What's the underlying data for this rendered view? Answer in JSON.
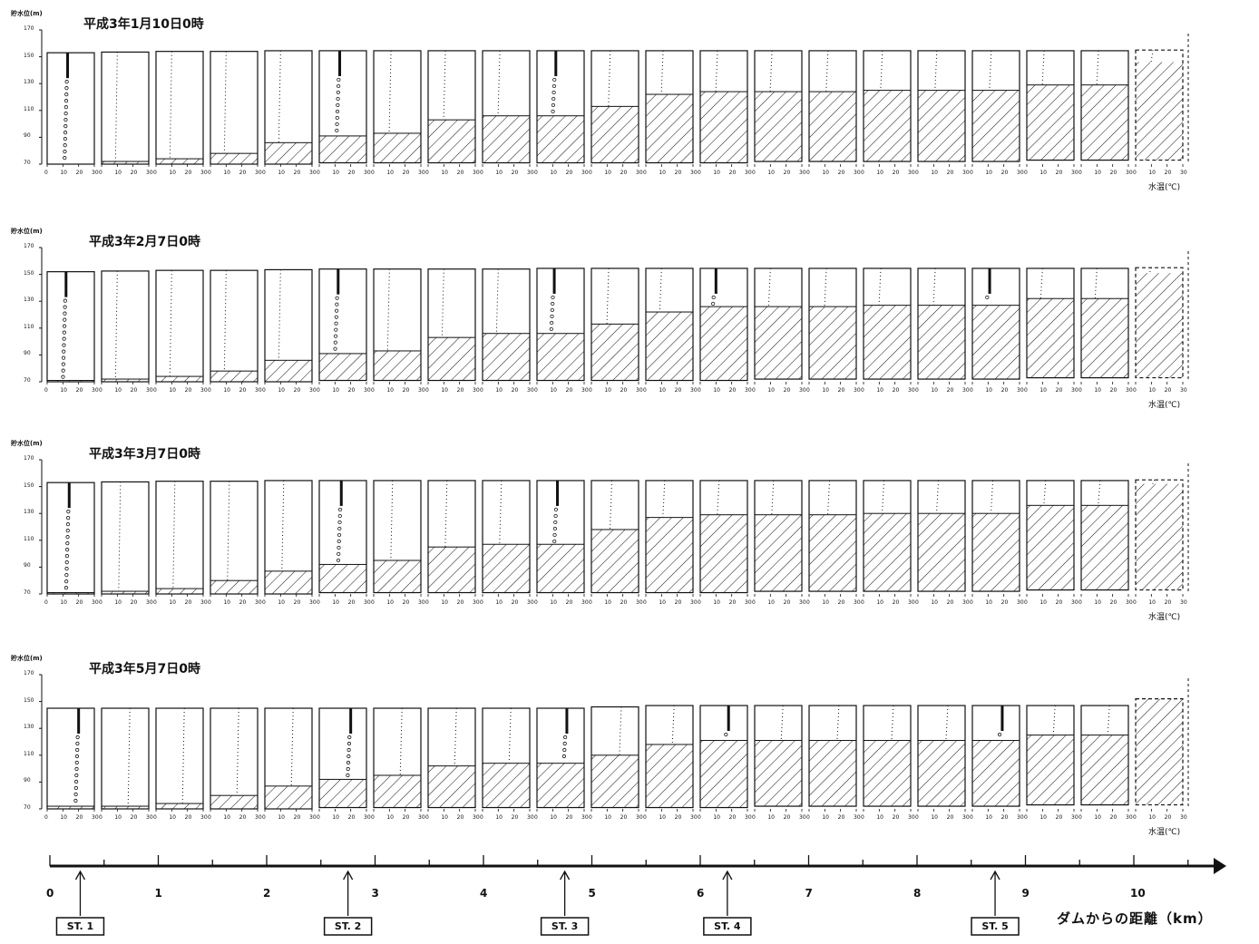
{
  "chart_data": [
    {
      "type": "water-temperature-profiles",
      "title": "平成3年1月10日0時",
      "ylabel": "貯水位(m)",
      "yticks": [
        170,
        150,
        130,
        110,
        90,
        70
      ],
      "xticks": [
        0,
        10,
        20,
        30
      ],
      "xlabel": "水温(℃)",
      "water_surface": [
        153,
        153.5,
        154,
        154,
        154.5,
        154.5,
        154.5,
        154.5,
        154.5,
        154.5,
        154.5,
        154.5,
        154.5,
        154.5,
        154.5,
        154.5,
        154.5,
        154.5,
        154.5,
        154.5,
        155
      ],
      "deposit_level": [
        70,
        72,
        74,
        78,
        86,
        91,
        93,
        103,
        106,
        106,
        113,
        122,
        124,
        124,
        124,
        125,
        125,
        125,
        129,
        129,
        146
      ],
      "bottom_level": [
        70,
        70,
        70,
        70,
        70,
        71,
        71,
        71,
        71,
        71,
        71,
        71,
        71,
        72,
        72,
        72,
        72,
        72,
        73,
        73,
        73
      ],
      "surface_temp": [
        13,
        10,
        10,
        10,
        10,
        13,
        11,
        11,
        11,
        12,
        12,
        11,
        11,
        11,
        12,
        12,
        12,
        12,
        11,
        11,
        11
      ],
      "observation_columns": [
        0,
        5,
        9
      ]
    },
    {
      "type": "water-temperature-profiles",
      "title": "平成3年2月7日0時",
      "ylabel": "貯水位(m)",
      "yticks": [
        170,
        150,
        130,
        110,
        90,
        70
      ],
      "xticks": [
        0,
        10,
        20,
        30
      ],
      "xlabel": "水温(℃)",
      "water_surface": [
        152,
        152.5,
        153,
        153,
        153.5,
        154,
        154,
        154,
        154,
        154.5,
        154.5,
        154.5,
        154.5,
        154.5,
        154.5,
        154.5,
        154.5,
        154.5,
        154.5,
        154.5,
        155
      ],
      "deposit_level": [
        71,
        72,
        74,
        78,
        86,
        91,
        93,
        103,
        106,
        106,
        113,
        122,
        126,
        126,
        126,
        127,
        127,
        127,
        132,
        132,
        151
      ],
      "bottom_level": [
        70,
        70,
        70,
        70,
        70,
        71,
        71,
        71,
        71,
        71,
        71,
        71,
        71,
        72,
        72,
        72,
        72,
        72,
        73,
        73,
        73
      ],
      "surface_temp": [
        12,
        10,
        10,
        10,
        10,
        12,
        10,
        10,
        10,
        11,
        11,
        10,
        10,
        10,
        11,
        11,
        11,
        11,
        10,
        10,
        10
      ],
      "observation_columns": [
        0,
        5,
        9,
        12,
        17
      ]
    },
    {
      "type": "water-temperature-profiles",
      "title": "平成3年3月7日0時",
      "ylabel": "貯水位(m)",
      "yticks": [
        170,
        150,
        130,
        110,
        90,
        70
      ],
      "xticks": [
        0,
        10,
        20,
        30
      ],
      "xlabel": "水温(℃)",
      "water_surface": [
        153,
        153.5,
        154,
        154,
        154.5,
        154.5,
        154.5,
        154.5,
        154.5,
        154.5,
        154.5,
        154.5,
        154.5,
        154.5,
        154.5,
        154.5,
        154.5,
        154.5,
        154.5,
        154.5,
        155
      ],
      "deposit_level": [
        71,
        72,
        74,
        80,
        87,
        92,
        95,
        105,
        107,
        107,
        118,
        127,
        129,
        129,
        129,
        130,
        130,
        130,
        136,
        136,
        152
      ],
      "bottom_level": [
        70,
        70,
        70,
        70,
        70,
        71,
        71,
        71,
        71,
        71,
        71,
        71,
        71,
        72,
        72,
        72,
        72,
        72,
        73,
        73,
        73
      ],
      "surface_temp": [
        14,
        12,
        12,
        12,
        12,
        14,
        12,
        12,
        12,
        13,
        13,
        12,
        12,
        12,
        13,
        13,
        13,
        13,
        12,
        12,
        12
      ],
      "observation_columns": [
        0,
        5,
        9
      ]
    },
    {
      "type": "water-temperature-profiles",
      "title": "平成3年5月7日0時",
      "ylabel": "貯水位(m)",
      "yticks": [
        170,
        150,
        130,
        110,
        90,
        70
      ],
      "xticks": [
        0,
        10,
        20,
        30
      ],
      "xlabel": "水温(℃)",
      "water_surface": [
        145,
        145,
        145,
        145,
        145,
        145,
        145,
        145,
        145,
        145,
        146,
        147,
        147,
        147,
        147,
        147,
        147,
        147,
        147,
        147,
        152
      ],
      "deposit_level": [
        72,
        72,
        74,
        80,
        87,
        92,
        95,
        102,
        104,
        104,
        110,
        118,
        121,
        121,
        121,
        121,
        121,
        121,
        125,
        125,
        152
      ],
      "bottom_level": [
        70,
        70,
        70,
        70,
        70,
        71,
        71,
        71,
        71,
        71,
        71,
        71,
        71,
        72,
        72,
        72,
        72,
        72,
        73,
        73,
        73
      ],
      "surface_temp": [
        20,
        18,
        18,
        18,
        18,
        20,
        18,
        18,
        18,
        19,
        19,
        18,
        18,
        18,
        19,
        19,
        19,
        19,
        18,
        18,
        18
      ],
      "observation_columns": [
        0,
        5,
        9,
        12,
        17
      ]
    }
  ],
  "distance_axis": {
    "tick_labels": [
      "0",
      "1",
      "2",
      "3",
      "4",
      "5",
      "6",
      "7",
      "8",
      "9",
      "10"
    ],
    "title": "ダムからの距離（km）",
    "stations": [
      {
        "label": "ST. 1",
        "km": 0.28
      },
      {
        "label": "ST. 2",
        "km": 2.75
      },
      {
        "label": "ST. 3",
        "km": 4.75
      },
      {
        "label": "ST. 4",
        "km": 6.25
      },
      {
        "label": "ST. 5",
        "km": 8.72
      }
    ]
  }
}
